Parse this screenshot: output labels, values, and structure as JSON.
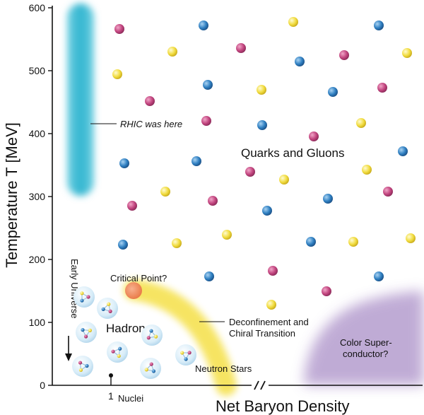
{
  "y_axis": {
    "title": "Temperature T [MeV]",
    "ticks": [
      "0",
      "100",
      "200",
      "300",
      "400",
      "500",
      "600"
    ]
  },
  "x_axis": {
    "title": "Net Baryon Density",
    "tick_one": "1",
    "nuclei_label": "Nuclei"
  },
  "labels": {
    "rhic": "RHIC was here",
    "quarks_gluons": "Quarks and Gluons",
    "critical_point": "Critical Point?",
    "deconfinement_line1": "Deconfinement and",
    "deconfinement_line2": "Chiral Transition",
    "hadrons": "Hadrons",
    "early_universe": "Early Universe",
    "neutron_stars": "Neutron Stars",
    "color_super_line1": "Color Super-",
    "color_super_line2": "conductor?"
  },
  "colors": {
    "rhic_band": "#3ab9d1",
    "critical_point": "#f08a5d",
    "transition_band": "#f6e35a",
    "color_superconductor": "#b9a3d1",
    "quark_red": "#c2457f",
    "quark_blue": "#2f7fc1",
    "quark_yellow": "#f1dc3f",
    "hadron_bubble": "#cfe7f5"
  }
}
